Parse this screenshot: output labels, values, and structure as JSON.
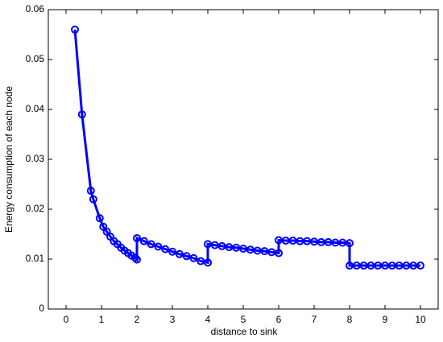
{
  "chart_data": {
    "type": "line",
    "x_label": "distance to sink",
    "y_label": "Energy consumption of each node",
    "color": "#0000ff",
    "x": [
      0.25,
      0.45,
      0.7,
      0.77,
      0.95,
      1.05,
      1.15,
      1.25,
      1.35,
      1.45,
      1.55,
      1.65,
      1.75,
      1.85,
      1.95,
      2.0,
      2.0,
      2.2,
      2.4,
      2.6,
      2.8,
      3.0,
      3.2,
      3.4,
      3.6,
      3.8,
      4.0,
      4.0,
      4.2,
      4.4,
      4.6,
      4.8,
      5.0,
      5.2,
      5.4,
      5.6,
      5.8,
      6.0,
      6.0,
      6.2,
      6.4,
      6.6,
      6.8,
      7.0,
      7.2,
      7.4,
      7.6,
      7.8,
      8.0,
      8.0,
      8.2,
      8.4,
      8.6,
      8.8,
      9.0,
      9.2,
      9.4,
      9.6,
      9.8,
      10.0
    ],
    "values": [
      0.056,
      0.039,
      0.0237,
      0.022,
      0.0182,
      0.0165,
      0.0155,
      0.0145,
      0.0136,
      0.013,
      0.0123,
      0.0117,
      0.0112,
      0.0107,
      0.0103,
      0.0099,
      0.0142,
      0.0136,
      0.013,
      0.0125,
      0.012,
      0.0115,
      0.011,
      0.0106,
      0.0102,
      0.0096,
      0.0093,
      0.013,
      0.0128,
      0.0126,
      0.0124,
      0.0123,
      0.0121,
      0.0119,
      0.0117,
      0.0116,
      0.0114,
      0.0112,
      0.0138,
      0.0137,
      0.0137,
      0.0136,
      0.0136,
      0.0135,
      0.0134,
      0.0134,
      0.0133,
      0.0133,
      0.0132,
      0.0087,
      0.0087,
      0.0087,
      0.0087,
      0.0087,
      0.0087,
      0.0087,
      0.0087,
      0.0087,
      0.0087,
      0.0087
    ],
    "xlim": [
      -0.5,
      10.5
    ],
    "xticks": [
      0,
      1,
      2,
      3,
      4,
      5,
      6,
      7,
      8,
      9,
      10
    ],
    "ylim": [
      0,
      0.06
    ],
    "yticks": [
      0,
      0.01,
      0.02,
      0.03,
      0.04,
      0.05,
      0.06
    ],
    "grid": false
  }
}
